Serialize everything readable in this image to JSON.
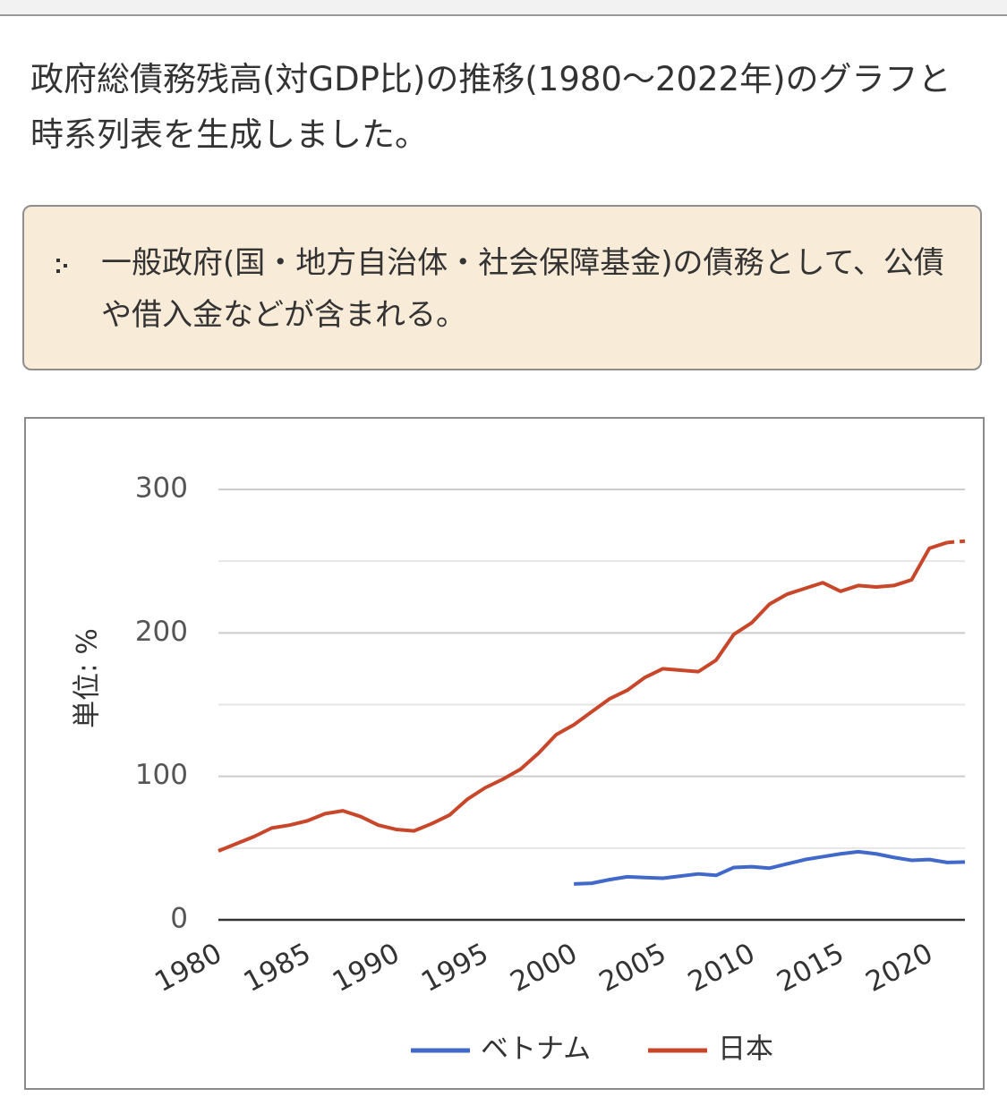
{
  "intro_text": "政府総債務残高(対GDP比)の推移(1980〜2022年)のグラフと時系列表を生成しました。",
  "note": {
    "bullet_icon": "bullet-icon",
    "text": "一般政府(国・地方自治体・社会保障基金)の債務として、公債や借入金などが含まれる。"
  },
  "chart_data": {
    "type": "line",
    "title": "",
    "xlabel": "",
    "ylabel": "単位: %",
    "xlim": [
      1980,
      2022
    ],
    "ylim": [
      0,
      300
    ],
    "yticks": [
      0,
      100,
      200,
      300
    ],
    "xticks": [
      "1980",
      "1985",
      "1990",
      "1995",
      "2000",
      "2005",
      "2010",
      "2015",
      "2020"
    ],
    "grid": true,
    "legend_position": "bottom",
    "series": [
      {
        "name": "ベトナム",
        "color": "#4169c9",
        "x": [
          2000,
          2001,
          2002,
          2003,
          2004,
          2005,
          2006,
          2007,
          2008,
          2009,
          2010,
          2011,
          2012,
          2013,
          2014,
          2015,
          2016,
          2017,
          2018,
          2019,
          2020,
          2021,
          2022
        ],
        "y": [
          25,
          25.5,
          28,
          30,
          29.5,
          29,
          30.5,
          32,
          31,
          36.5,
          37,
          36,
          39,
          42,
          44,
          46,
          47.5,
          46,
          43.5,
          41.5,
          42,
          40,
          40.3
        ],
        "dashed_from": null
      },
      {
        "name": "日本",
        "color": "#c8472a",
        "x": [
          1980,
          1981,
          1982,
          1983,
          1984,
          1985,
          1986,
          1987,
          1988,
          1989,
          1990,
          1991,
          1992,
          1993,
          1994,
          1995,
          1996,
          1997,
          1998,
          1999,
          2000,
          2001,
          2002,
          2003,
          2004,
          2005,
          2006,
          2007,
          2008,
          2009,
          2010,
          2011,
          2012,
          2013,
          2014,
          2015,
          2016,
          2017,
          2018,
          2019,
          2020,
          2021,
          2022
        ],
        "y": [
          48,
          53,
          58,
          64,
          66,
          69,
          74,
          76,
          72,
          66,
          63,
          62,
          67,
          73,
          84,
          92,
          98,
          105,
          116,
          129,
          136,
          145,
          154,
          160,
          169,
          175,
          174,
          173,
          181,
          199,
          207,
          220,
          227,
          231,
          235,
          229,
          233,
          232,
          233,
          237,
          259,
          263,
          264
        ],
        "dashed_from": 2021
      }
    ]
  }
}
